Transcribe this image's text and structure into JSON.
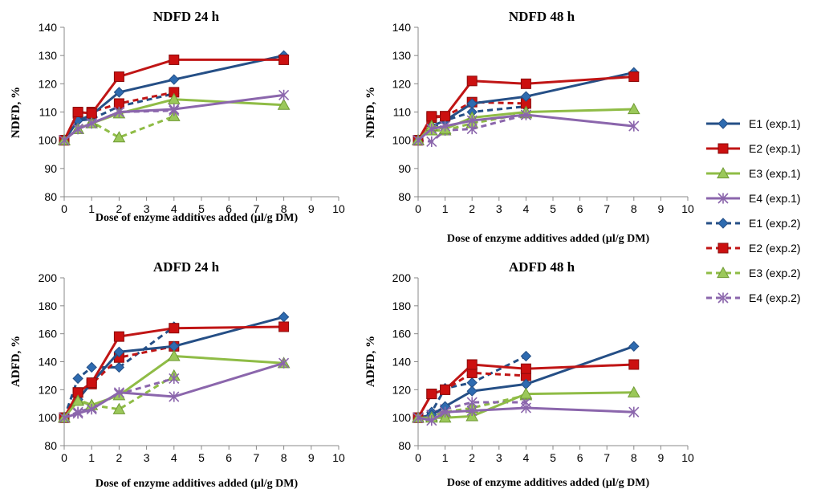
{
  "colors": {
    "E1": "#254f86",
    "E2": "#c01515",
    "E3": "#8fbc46",
    "E4": "#8b66ac",
    "E1_fill": "#2e6bb0",
    "E2_fill": "#cc1010",
    "E3_fill": "#9bc85a",
    "E4_fill": "#8b66ac"
  },
  "legend": [
    {
      "key": "E1",
      "dash": false,
      "marker": "diamond",
      "label": "E1 (exp.1)"
    },
    {
      "key": "E2",
      "dash": false,
      "marker": "square",
      "label": "E2 (exp.1)"
    },
    {
      "key": "E3",
      "dash": false,
      "marker": "triangle",
      "label": "E3 (exp.1)"
    },
    {
      "key": "E4",
      "dash": false,
      "marker": "asterisk",
      "label": "E4 (exp.1)"
    },
    {
      "key": "E1",
      "dash": true,
      "marker": "diamond",
      "label": "E1 (exp.2)"
    },
    {
      "key": "E2",
      "dash": true,
      "marker": "square",
      "label": "E2 (exp.2)"
    },
    {
      "key": "E3",
      "dash": true,
      "marker": "triangle",
      "label": "E3 (exp.2)"
    },
    {
      "key": "E4",
      "dash": true,
      "marker": "asterisk",
      "label": "E4 (exp.2)"
    }
  ],
  "chart_data": [
    {
      "type": "line",
      "title": "NDFD 24 h",
      "xlabel": "Dose of enzyme additives added (µl/g DM)",
      "ylabel": "NDFD, %",
      "xlim": [
        0,
        10
      ],
      "ylim": [
        80,
        140
      ],
      "xticks": [
        "0",
        "1",
        "2",
        "3",
        "4",
        "5",
        "6",
        "7",
        "8",
        "9",
        "10"
      ],
      "yticks": [
        "80",
        "90",
        "100",
        "110",
        "120",
        "130",
        "140"
      ],
      "series": [
        {
          "name": "E1 (exp.1)",
          "key": "E1",
          "dash": false,
          "marker": "diamond",
          "x": [
            0,
            0.5,
            1,
            2,
            4,
            8
          ],
          "y": [
            100,
            107,
            109,
            117,
            121.5,
            130
          ]
        },
        {
          "name": "E2 (exp.1)",
          "key": "E2",
          "dash": false,
          "marker": "square",
          "x": [
            0,
            0.5,
            1,
            2,
            4,
            8
          ],
          "y": [
            100,
            110,
            109.5,
            122.5,
            128.5,
            128.5
          ]
        },
        {
          "name": "E3 (exp.1)",
          "key": "E3",
          "dash": false,
          "marker": "triangle",
          "x": [
            0,
            0.5,
            1,
            2,
            4,
            8
          ],
          "y": [
            100,
            104,
            106,
            109.5,
            114.5,
            112.5
          ]
        },
        {
          "name": "E4 (exp.1)",
          "key": "E4",
          "dash": false,
          "marker": "asterisk",
          "x": [
            0,
            0.5,
            1,
            2,
            4,
            8
          ],
          "y": [
            100,
            104,
            106,
            110,
            111,
            116
          ]
        },
        {
          "name": "E1 (exp.2)",
          "key": "E1",
          "dash": true,
          "marker": "diamond",
          "x": [
            0,
            0.5,
            1,
            2,
            4
          ],
          "y": [
            100,
            107,
            107.5,
            112,
            116.5
          ]
        },
        {
          "name": "E2 (exp.2)",
          "key": "E2",
          "dash": true,
          "marker": "square",
          "x": [
            0,
            0.5,
            1,
            2,
            4
          ],
          "y": [
            100,
            109.5,
            110,
            113,
            117
          ]
        },
        {
          "name": "E3 (exp.2)",
          "key": "E3",
          "dash": true,
          "marker": "triangle",
          "x": [
            0,
            0.5,
            1,
            2,
            4
          ],
          "y": [
            100,
            104,
            106.5,
            101,
            108.5
          ]
        },
        {
          "name": "E4 (exp.2)",
          "key": "E4",
          "dash": true,
          "marker": "asterisk",
          "x": [
            0,
            0.5,
            1,
            2,
            4
          ],
          "y": [
            100,
            104,
            106,
            110,
            110.5
          ]
        }
      ]
    },
    {
      "type": "line",
      "title": "NDFD 48 h",
      "xlabel": "Dose of enzyme additives added (µl/g DM)",
      "ylabel": "NDFD, %",
      "xlim": [
        0,
        10
      ],
      "ylim": [
        80,
        140
      ],
      "xticks": [
        "0",
        "1",
        "2",
        "3",
        "4",
        "5",
        "6",
        "7",
        "8",
        "9",
        "10"
      ],
      "yticks": [
        "80",
        "90",
        "100",
        "110",
        "120",
        "130",
        "140"
      ],
      "series": [
        {
          "name": "E1 (exp.1)",
          "key": "E1",
          "dash": false,
          "marker": "diamond",
          "x": [
            0,
            0.5,
            1,
            2,
            4,
            8
          ],
          "y": [
            100,
            105,
            107,
            113,
            115.5,
            124
          ]
        },
        {
          "name": "E2 (exp.1)",
          "key": "E2",
          "dash": false,
          "marker": "square",
          "x": [
            0,
            0.5,
            1,
            2,
            4,
            8
          ],
          "y": [
            100,
            108.5,
            108.5,
            121,
            120,
            122.5
          ]
        },
        {
          "name": "E3 (exp.1)",
          "key": "E3",
          "dash": false,
          "marker": "triangle",
          "x": [
            0,
            0.5,
            1,
            2,
            4,
            8
          ],
          "y": [
            100,
            105,
            104,
            108,
            110,
            111
          ]
        },
        {
          "name": "E4 (exp.1)",
          "key": "E4",
          "dash": false,
          "marker": "asterisk",
          "x": [
            0,
            0.5,
            1,
            2,
            4,
            8
          ],
          "y": [
            100,
            104,
            105,
            107,
            109,
            105
          ]
        },
        {
          "name": "E1 (exp.2)",
          "key": "E1",
          "dash": true,
          "marker": "diamond",
          "x": [
            0,
            0.5,
            1,
            2,
            4
          ],
          "y": [
            100,
            104,
            107,
            110,
            112
          ]
        },
        {
          "name": "E2 (exp.2)",
          "key": "E2",
          "dash": true,
          "marker": "square",
          "x": [
            0,
            0.5,
            1,
            2,
            4
          ],
          "y": [
            100,
            108,
            108.5,
            113.5,
            113
          ]
        },
        {
          "name": "E3 (exp.2)",
          "key": "E3",
          "dash": true,
          "marker": "triangle",
          "x": [
            0,
            0.5,
            1,
            2,
            4
          ],
          "y": [
            100,
            103.5,
            103.5,
            106,
            109.5
          ]
        },
        {
          "name": "E4 (exp.2)",
          "key": "E4",
          "dash": true,
          "marker": "asterisk",
          "x": [
            0,
            0.5,
            1,
            2,
            4
          ],
          "y": [
            100,
            99.5,
            103.5,
            104,
            109
          ]
        }
      ]
    },
    {
      "type": "line",
      "title": "ADFD 24 h",
      "xlabel": "Dose of enzyme additives added (µl/g DM)",
      "ylabel": "ADFD, %",
      "xlim": [
        0,
        10
      ],
      "ylim": [
        80,
        200
      ],
      "xticks": [
        "0",
        "1",
        "2",
        "3",
        "4",
        "5",
        "6",
        "7",
        "8",
        "9",
        "10"
      ],
      "yticks": [
        "80",
        "100",
        "120",
        "140",
        "160",
        "180",
        "200"
      ],
      "series": [
        {
          "name": "E1 (exp.1)",
          "key": "E1",
          "dash": false,
          "marker": "diamond",
          "x": [
            0,
            0.5,
            1,
            2,
            4,
            8
          ],
          "y": [
            100,
            113,
            125,
            147,
            151,
            172
          ]
        },
        {
          "name": "E2 (exp.1)",
          "key": "E2",
          "dash": false,
          "marker": "square",
          "x": [
            0,
            0.5,
            1,
            2,
            4,
            8
          ],
          "y": [
            100,
            118,
            125,
            158,
            164,
            165
          ]
        },
        {
          "name": "E3 (exp.1)",
          "key": "E3",
          "dash": false,
          "marker": "triangle",
          "x": [
            0,
            0.5,
            1,
            2,
            4,
            8
          ],
          "y": [
            100,
            112,
            109,
            116,
            144,
            139
          ]
        },
        {
          "name": "E4 (exp.1)",
          "key": "E4",
          "dash": false,
          "marker": "asterisk",
          "x": [
            0,
            0.5,
            1,
            2,
            4,
            8
          ],
          "y": [
            100,
            103,
            106,
            118,
            115,
            139
          ]
        },
        {
          "name": "E1 (exp.2)",
          "key": "E1",
          "dash": true,
          "marker": "diamond",
          "x": [
            0,
            0.5,
            1,
            2,
            4
          ],
          "y": [
            100,
            128,
            136,
            136,
            165
          ]
        },
        {
          "name": "E2 (exp.2)",
          "key": "E2",
          "dash": true,
          "marker": "square",
          "x": [
            0,
            0.5,
            1,
            2,
            4
          ],
          "y": [
            100,
            118,
            124,
            143,
            151
          ]
        },
        {
          "name": "E3 (exp.2)",
          "key": "E3",
          "dash": true,
          "marker": "triangle",
          "x": [
            0,
            0.5,
            1,
            2,
            4
          ],
          "y": [
            100,
            113,
            109,
            106,
            130
          ]
        },
        {
          "name": "E4 (exp.2)",
          "key": "E4",
          "dash": true,
          "marker": "asterisk",
          "x": [
            0,
            0.5,
            1,
            2,
            4
          ],
          "y": [
            100,
            104,
            107,
            117,
            128
          ]
        }
      ]
    },
    {
      "type": "line",
      "title": "ADFD 48 h",
      "xlabel": "Dose of enzyme additives added (µl/g DM)",
      "ylabel": "ADFD, %",
      "xlim": [
        0,
        10
      ],
      "ylim": [
        80,
        200
      ],
      "xticks": [
        "0",
        "1",
        "2",
        "3",
        "4",
        "5",
        "6",
        "7",
        "8",
        "9",
        "10"
      ],
      "yticks": [
        "80",
        "100",
        "120",
        "140",
        "160",
        "180",
        "200"
      ],
      "series": [
        {
          "name": "E1 (exp.1)",
          "key": "E1",
          "dash": false,
          "marker": "diamond",
          "x": [
            0,
            0.5,
            1,
            2,
            4,
            8
          ],
          "y": [
            100,
            102,
            108,
            119,
            124,
            151
          ]
        },
        {
          "name": "E2 (exp.1)",
          "key": "E2",
          "dash": false,
          "marker": "square",
          "x": [
            0,
            0.5,
            1,
            2,
            4,
            8
          ],
          "y": [
            100,
            117,
            120,
            138,
            135,
            138
          ]
        },
        {
          "name": "E3 (exp.1)",
          "key": "E3",
          "dash": false,
          "marker": "triangle",
          "x": [
            0,
            0.5,
            1,
            2,
            4,
            8
          ],
          "y": [
            100,
            100,
            100,
            101,
            117,
            118
          ]
        },
        {
          "name": "E4 (exp.1)",
          "key": "E4",
          "dash": false,
          "marker": "asterisk",
          "x": [
            0,
            0.5,
            1,
            2,
            4,
            8
          ],
          "y": [
            100,
            98,
            104,
            105,
            107,
            104
          ]
        },
        {
          "name": "E1 (exp.2)",
          "key": "E1",
          "dash": true,
          "marker": "diamond",
          "x": [
            0,
            0.5,
            1,
            2,
            4
          ],
          "y": [
            100,
            104,
            121,
            125,
            144
          ]
        },
        {
          "name": "E2 (exp.2)",
          "key": "E2",
          "dash": true,
          "marker": "square",
          "x": [
            0,
            0.5,
            1,
            2,
            4
          ],
          "y": [
            100,
            117,
            120,
            132,
            130
          ]
        },
        {
          "name": "E3 (exp.2)",
          "key": "E3",
          "dash": true,
          "marker": "triangle",
          "x": [
            0,
            0.5,
            1,
            2,
            4
          ],
          "y": [
            100,
            101,
            104,
            107,
            116
          ]
        },
        {
          "name": "E4 (exp.2)",
          "key": "E4",
          "dash": true,
          "marker": "asterisk",
          "x": [
            0,
            0.5,
            1,
            2,
            4
          ],
          "y": [
            100,
            102,
            106,
            111,
            111
          ]
        }
      ]
    }
  ]
}
